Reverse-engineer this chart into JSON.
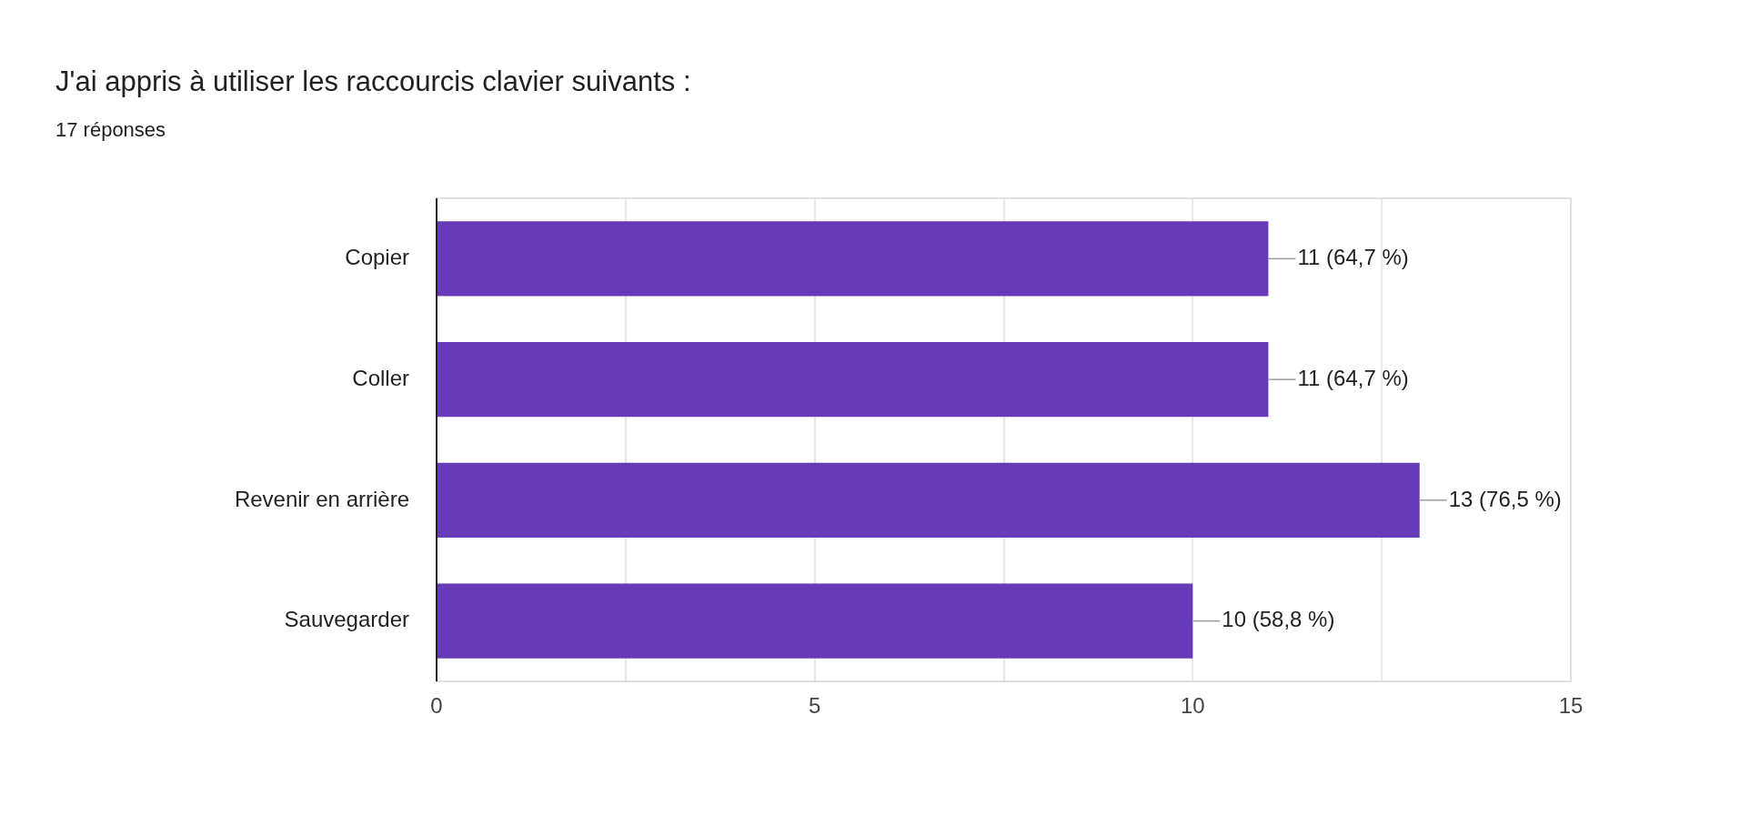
{
  "chart_data": {
    "type": "bar",
    "orientation": "horizontal",
    "title": "J'ai appris à utiliser les raccourcis clavier suivants :",
    "subtitle": "17 réponses",
    "categories": [
      "Copier",
      "Coller",
      "Revenir en arrière",
      "Sauvegarder"
    ],
    "values": [
      11,
      11,
      13,
      10
    ],
    "value_labels": [
      "11 (64,7 %)",
      "11 (64,7 %)",
      "13 (76,5 %)",
      "10 (58,8 %)"
    ],
    "color": "#673ab7",
    "xlim": [
      0,
      15
    ],
    "xticks": [
      0,
      {
        "value": 2.5,
        "label": null
      },
      5,
      {
        "value": 7.5,
        "label": null
      },
      10,
      {
        "value": 12.5,
        "label": null
      },
      15
    ],
    "grid": "x",
    "legend": false
  }
}
